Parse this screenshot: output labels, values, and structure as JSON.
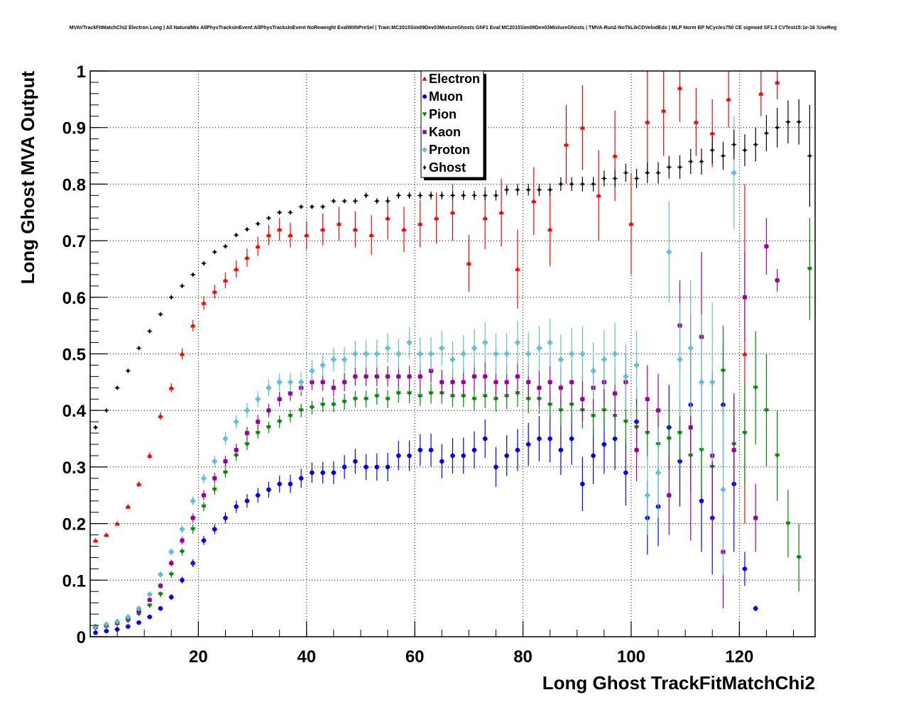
{
  "chart_data": {
    "type": "scatter",
    "title": "MVAVTrackFitMatchChi2 Electron Long | All NaturalMix AllPhysTracksInEvent:AllPhysTracksInEvent NoReweight EvalWithPreSel | Train:MC2015Sim09Dev03MixtureGhosts GhF1 Eval:MC2015Sim09Dev03MixtureGhosts | TMVA-Run2-NoTkLikCDVelodEdx | MLP Norm BP NCycles750 CE sigmoid SF1.3 CVTest15:1e-16 !UseReg",
    "xlabel": "Long Ghost TrackFitMatchChi2",
    "ylabel": "Long Ghost MVA Output",
    "xlim": [
      0,
      134
    ],
    "ylim": [
      0,
      1
    ],
    "xticks": [
      20,
      40,
      60,
      80,
      100,
      120
    ],
    "yticks": [
      0,
      0.1,
      0.2,
      0.3,
      0.4,
      0.5,
      0.6,
      0.7,
      0.8,
      0.9,
      1
    ],
    "ytick_labels": [
      "0",
      "0.1",
      "0.2",
      "0.3",
      "0.4",
      "0.5",
      "0.6",
      "0.7",
      "0.8",
      "0.9",
      "1"
    ],
    "grid": true,
    "legend_position": "top-center",
    "series": [
      {
        "name": "Electron",
        "color": "#ff0000",
        "marker": "triangle-up",
        "x": [
          1,
          3,
          5,
          7,
          9,
          11,
          13,
          15,
          17,
          19,
          21,
          23,
          25,
          27,
          29,
          31,
          33,
          35,
          37,
          40,
          43,
          46,
          49,
          52,
          55,
          58,
          61,
          64,
          67,
          70,
          73,
          76,
          79,
          82,
          85,
          88,
          91,
          94,
          97,
          100,
          103,
          106,
          109,
          112,
          115,
          118,
          121,
          124,
          127
        ],
        "y": [
          0.17,
          0.18,
          0.2,
          0.23,
          0.27,
          0.32,
          0.39,
          0.44,
          0.5,
          0.55,
          0.59,
          0.61,
          0.63,
          0.65,
          0.67,
          0.69,
          0.71,
          0.72,
          0.71,
          0.71,
          0.72,
          0.73,
          0.72,
          0.71,
          0.74,
          0.72,
          0.73,
          0.74,
          0.75,
          0.66,
          0.74,
          0.75,
          0.65,
          0.77,
          0.72,
          0.87,
          0.9,
          0.78,
          0.85,
          0.73,
          0.91,
          0.93,
          0.97,
          0.91,
          0.89,
          0.95,
          0.5,
          0.96,
          0.98
        ],
        "yerr": [
          0.003,
          0.003,
          0.003,
          0.004,
          0.005,
          0.006,
          0.007,
          0.008,
          0.01,
          0.01,
          0.012,
          0.012,
          0.014,
          0.015,
          0.016,
          0.017,
          0.018,
          0.02,
          0.022,
          0.025,
          0.028,
          0.03,
          0.032,
          0.035,
          0.038,
          0.04,
          0.042,
          0.045,
          0.05,
          0.05,
          0.055,
          0.06,
          0.07,
          0.06,
          0.065,
          0.07,
          0.075,
          0.08,
          0.08,
          0.09,
          0.09,
          0.08,
          0.06,
          0.06,
          0.06,
          0.05,
          0.3,
          0.04,
          0.03
        ]
      },
      {
        "name": "Muon",
        "color": "#0000ff",
        "marker": "circle",
        "x": [
          1,
          3,
          5,
          7,
          9,
          11,
          13,
          15,
          17,
          19,
          21,
          23,
          25,
          27,
          29,
          31,
          33,
          35,
          37,
          39,
          41,
          43,
          45,
          47,
          49,
          51,
          53,
          55,
          57,
          59,
          61,
          63,
          65,
          67,
          69,
          71,
          73,
          75,
          77,
          79,
          81,
          83,
          85,
          87,
          89,
          91,
          93,
          95,
          97,
          99,
          101,
          103,
          105,
          107,
          109,
          111,
          113,
          115,
          117,
          119,
          121,
          123
        ],
        "y": [
          0.007,
          0.01,
          0.013,
          0.018,
          0.025,
          0.035,
          0.05,
          0.07,
          0.1,
          0.13,
          0.17,
          0.19,
          0.21,
          0.23,
          0.24,
          0.25,
          0.26,
          0.27,
          0.27,
          0.28,
          0.29,
          0.29,
          0.29,
          0.3,
          0.31,
          0.3,
          0.3,
          0.3,
          0.32,
          0.32,
          0.33,
          0.33,
          0.31,
          0.32,
          0.32,
          0.33,
          0.35,
          0.3,
          0.32,
          0.33,
          0.34,
          0.35,
          0.35,
          0.33,
          0.35,
          0.27,
          0.32,
          0.34,
          0.35,
          0.29,
          0.38,
          0.21,
          0.23,
          0.37,
          0.31,
          0.41,
          0.24,
          0.21,
          0.41,
          0.27,
          0.12,
          0.05
        ],
        "yerr": [
          0.001,
          0.001,
          0.001,
          0.002,
          0.002,
          0.003,
          0.004,
          0.005,
          0.006,
          0.007,
          0.008,
          0.009,
          0.01,
          0.011,
          0.012,
          0.013,
          0.014,
          0.015,
          0.016,
          0.017,
          0.018,
          0.019,
          0.02,
          0.021,
          0.022,
          0.023,
          0.024,
          0.025,
          0.026,
          0.027,
          0.028,
          0.029,
          0.03,
          0.031,
          0.032,
          0.033,
          0.034,
          0.035,
          0.036,
          0.037,
          0.038,
          0.04,
          0.042,
          0.044,
          0.046,
          0.048,
          0.05,
          0.052,
          0.055,
          0.058,
          0.06,
          0.065,
          0.07,
          0.075,
          0.08,
          0.085,
          0.09,
          0.1,
          0.11,
          0.12,
          0.03,
          0.005
        ]
      },
      {
        "name": "Pion",
        "color": "#008800",
        "marker": "triangle-down",
        "x": [
          1,
          3,
          5,
          7,
          9,
          11,
          13,
          15,
          17,
          19,
          21,
          23,
          25,
          27,
          29,
          31,
          33,
          35,
          37,
          39,
          41,
          43,
          45,
          47,
          49,
          51,
          53,
          55,
          57,
          59,
          61,
          63,
          65,
          67,
          69,
          71,
          73,
          75,
          77,
          79,
          81,
          83,
          85,
          87,
          89,
          91,
          93,
          95,
          97,
          99,
          101,
          103,
          105,
          107,
          109,
          111,
          113,
          115,
          117,
          119,
          121,
          123,
          125,
          127,
          129,
          131,
          133
        ],
        "y": [
          0.015,
          0.018,
          0.022,
          0.028,
          0.04,
          0.055,
          0.075,
          0.11,
          0.15,
          0.19,
          0.23,
          0.26,
          0.29,
          0.32,
          0.34,
          0.36,
          0.37,
          0.38,
          0.39,
          0.4,
          0.405,
          0.41,
          0.41,
          0.415,
          0.42,
          0.42,
          0.425,
          0.42,
          0.43,
          0.43,
          0.425,
          0.43,
          0.43,
          0.425,
          0.425,
          0.42,
          0.425,
          0.42,
          0.425,
          0.43,
          0.42,
          0.42,
          0.41,
          0.4,
          0.41,
          0.4,
          0.39,
          0.4,
          0.39,
          0.38,
          0.37,
          0.36,
          0.34,
          0.35,
          0.36,
          0.32,
          0.33,
          0.3,
          0.47,
          0.34,
          0.36,
          0.44,
          0.4,
          0.32,
          0.2,
          0.14,
          0.65
        ],
        "yerr": [
          0.001,
          0.001,
          0.002,
          0.002,
          0.003,
          0.004,
          0.005,
          0.006,
          0.007,
          0.008,
          0.008,
          0.009,
          0.009,
          0.009,
          0.01,
          0.01,
          0.01,
          0.011,
          0.011,
          0.012,
          0.012,
          0.013,
          0.013,
          0.014,
          0.014,
          0.015,
          0.015,
          0.016,
          0.016,
          0.017,
          0.017,
          0.018,
          0.018,
          0.019,
          0.019,
          0.02,
          0.021,
          0.022,
          0.023,
          0.024,
          0.025,
          0.026,
          0.027,
          0.028,
          0.03,
          0.032,
          0.034,
          0.036,
          0.038,
          0.04,
          0.042,
          0.045,
          0.05,
          0.055,
          0.06,
          0.065,
          0.07,
          0.075,
          0.08,
          0.085,
          0.09,
          0.1,
          0.1,
          0.08,
          0.06,
          0.06,
          0.09
        ]
      },
      {
        "name": "Kaon",
        "color": "#990099",
        "marker": "square",
        "x": [
          1,
          3,
          5,
          7,
          9,
          11,
          13,
          15,
          17,
          19,
          21,
          23,
          25,
          27,
          29,
          31,
          33,
          35,
          37,
          39,
          41,
          43,
          45,
          47,
          49,
          51,
          53,
          55,
          57,
          59,
          61,
          63,
          65,
          67,
          69,
          71,
          73,
          75,
          77,
          79,
          81,
          83,
          85,
          87,
          89,
          91,
          93,
          95,
          97,
          99,
          101,
          103,
          105,
          107,
          109,
          111,
          113,
          115,
          117,
          119,
          121,
          123,
          125,
          127
        ],
        "y": [
          0.017,
          0.02,
          0.025,
          0.032,
          0.045,
          0.065,
          0.09,
          0.13,
          0.17,
          0.21,
          0.25,
          0.28,
          0.31,
          0.33,
          0.36,
          0.38,
          0.4,
          0.42,
          0.43,
          0.44,
          0.45,
          0.45,
          0.44,
          0.45,
          0.46,
          0.46,
          0.46,
          0.46,
          0.46,
          0.46,
          0.46,
          0.47,
          0.45,
          0.45,
          0.45,
          0.46,
          0.46,
          0.45,
          0.45,
          0.46,
          0.45,
          0.44,
          0.45,
          0.44,
          0.45,
          0.42,
          0.44,
          0.45,
          0.43,
          0.45,
          0.33,
          0.42,
          0.4,
          0.25,
          0.55,
          0.37,
          0.53,
          0.32,
          0.15,
          0.33,
          0.6,
          0.21,
          0.69,
          0.63
        ],
        "yerr": [
          0.001,
          0.001,
          0.002,
          0.002,
          0.003,
          0.004,
          0.005,
          0.006,
          0.007,
          0.008,
          0.009,
          0.01,
          0.01,
          0.011,
          0.011,
          0.012,
          0.012,
          0.013,
          0.013,
          0.014,
          0.014,
          0.015,
          0.015,
          0.016,
          0.016,
          0.017,
          0.017,
          0.018,
          0.018,
          0.019,
          0.02,
          0.021,
          0.022,
          0.023,
          0.024,
          0.025,
          0.026,
          0.027,
          0.028,
          0.029,
          0.03,
          0.032,
          0.034,
          0.036,
          0.038,
          0.04,
          0.042,
          0.045,
          0.048,
          0.05,
          0.055,
          0.06,
          0.065,
          0.07,
          0.08,
          0.2,
          0.15,
          0.15,
          0.1,
          0.1,
          0.08,
          0.06,
          0.05,
          0.02
        ]
      },
      {
        "name": "Proton",
        "color": "#5fc0cf",
        "marker": "cross",
        "x": [
          1,
          3,
          5,
          7,
          9,
          11,
          13,
          15,
          17,
          19,
          21,
          23,
          25,
          27,
          29,
          31,
          33,
          35,
          37,
          39,
          41,
          43,
          45,
          47,
          49,
          51,
          53,
          55,
          57,
          59,
          61,
          63,
          65,
          67,
          69,
          71,
          73,
          75,
          77,
          79,
          81,
          83,
          85,
          87,
          89,
          91,
          93,
          95,
          97,
          99,
          101,
          103,
          105,
          107,
          109,
          111,
          113,
          115,
          117,
          119
        ],
        "y": [
          0.018,
          0.022,
          0.027,
          0.035,
          0.05,
          0.075,
          0.11,
          0.15,
          0.19,
          0.24,
          0.28,
          0.31,
          0.35,
          0.38,
          0.4,
          0.42,
          0.44,
          0.45,
          0.45,
          0.45,
          0.47,
          0.48,
          0.49,
          0.49,
          0.5,
          0.5,
          0.5,
          0.51,
          0.5,
          0.52,
          0.5,
          0.5,
          0.51,
          0.49,
          0.5,
          0.51,
          0.52,
          0.5,
          0.5,
          0.52,
          0.5,
          0.51,
          0.52,
          0.49,
          0.5,
          0.5,
          0.47,
          0.49,
          0.5,
          0.46,
          0.48,
          0.25,
          0.29,
          0.68,
          0.49,
          0.51,
          0.45,
          0.45,
          0.26,
          0.82
        ],
        "yerr": [
          0.001,
          0.001,
          0.002,
          0.002,
          0.003,
          0.004,
          0.005,
          0.006,
          0.007,
          0.008,
          0.009,
          0.01,
          0.011,
          0.012,
          0.013,
          0.014,
          0.015,
          0.016,
          0.017,
          0.018,
          0.019,
          0.02,
          0.021,
          0.022,
          0.023,
          0.024,
          0.025,
          0.026,
          0.027,
          0.028,
          0.029,
          0.03,
          0.031,
          0.032,
          0.033,
          0.034,
          0.035,
          0.036,
          0.037,
          0.038,
          0.039,
          0.04,
          0.042,
          0.044,
          0.046,
          0.048,
          0.05,
          0.052,
          0.055,
          0.058,
          0.06,
          0.07,
          0.08,
          0.09,
          0.1,
          0.12,
          0.12,
          0.14,
          0.15,
          0.1
        ]
      },
      {
        "name": "Ghost",
        "color": "#000000",
        "marker": "diamond",
        "x": [
          1,
          3,
          5,
          7,
          9,
          11,
          13,
          15,
          17,
          19,
          21,
          23,
          25,
          27,
          29,
          31,
          33,
          35,
          37,
          39,
          41,
          43,
          45,
          47,
          49,
          51,
          53,
          55,
          57,
          59,
          61,
          63,
          65,
          67,
          69,
          71,
          73,
          75,
          77,
          79,
          81,
          83,
          85,
          87,
          89,
          91,
          93,
          95,
          97,
          99,
          101,
          103,
          105,
          107,
          109,
          111,
          113,
          115,
          117,
          119,
          121,
          123,
          125,
          127,
          129,
          131,
          133
        ],
        "y": [
          0.37,
          0.4,
          0.44,
          0.47,
          0.51,
          0.54,
          0.57,
          0.6,
          0.62,
          0.64,
          0.66,
          0.68,
          0.69,
          0.71,
          0.72,
          0.73,
          0.74,
          0.75,
          0.75,
          0.76,
          0.76,
          0.76,
          0.77,
          0.77,
          0.77,
          0.78,
          0.77,
          0.77,
          0.78,
          0.78,
          0.78,
          0.78,
          0.78,
          0.78,
          0.78,
          0.78,
          0.78,
          0.78,
          0.79,
          0.79,
          0.79,
          0.79,
          0.79,
          0.8,
          0.8,
          0.8,
          0.8,
          0.81,
          0.81,
          0.82,
          0.81,
          0.82,
          0.82,
          0.83,
          0.83,
          0.84,
          0.84,
          0.86,
          0.85,
          0.87,
          0.86,
          0.87,
          0.89,
          0.9,
          0.91,
          0.91,
          0.85
        ],
        "yerr": [
          0.002,
          0.002,
          0.002,
          0.002,
          0.002,
          0.002,
          0.002,
          0.002,
          0.002,
          0.002,
          0.002,
          0.002,
          0.002,
          0.002,
          0.003,
          0.003,
          0.003,
          0.003,
          0.003,
          0.003,
          0.004,
          0.004,
          0.004,
          0.004,
          0.005,
          0.005,
          0.005,
          0.005,
          0.006,
          0.006,
          0.006,
          0.007,
          0.007,
          0.007,
          0.008,
          0.008,
          0.008,
          0.009,
          0.009,
          0.01,
          0.01,
          0.011,
          0.011,
          0.012,
          0.012,
          0.013,
          0.013,
          0.014,
          0.015,
          0.016,
          0.017,
          0.018,
          0.019,
          0.02,
          0.021,
          0.022,
          0.023,
          0.024,
          0.025,
          0.026,
          0.028,
          0.03,
          0.032,
          0.035,
          0.038,
          0.04,
          0.09
        ]
      }
    ]
  }
}
